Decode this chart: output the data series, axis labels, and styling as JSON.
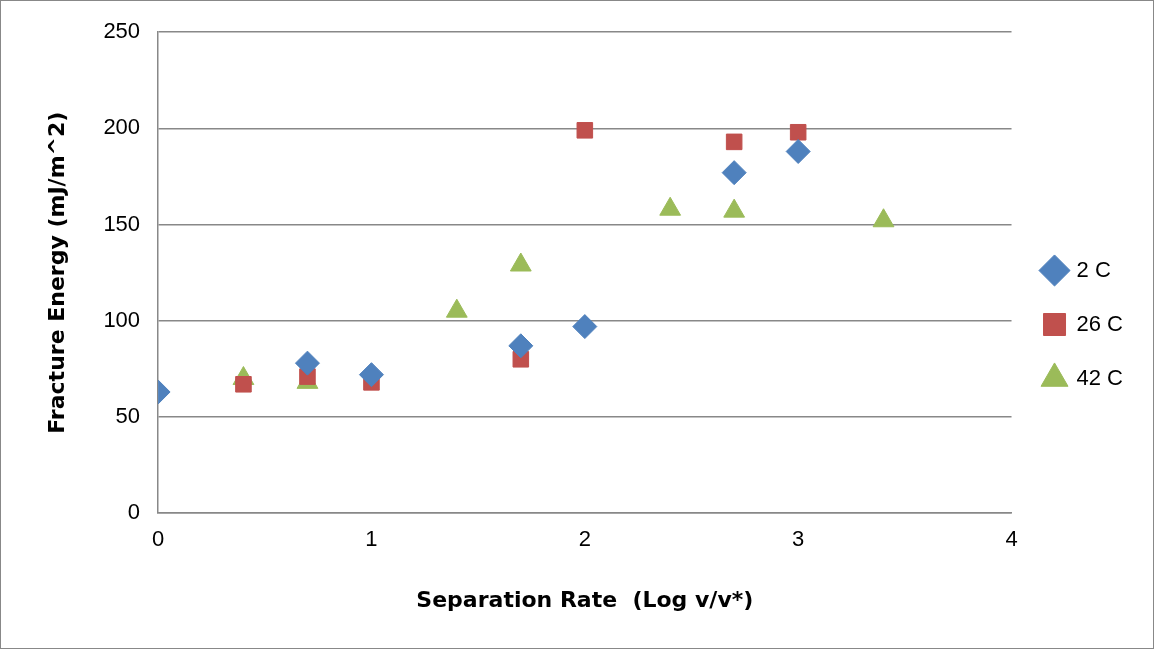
{
  "chart_data": {
    "type": "scatter",
    "xlabel": "Separation Rate  (Log v/v*)",
    "ylabel": "Fracture Energy (mJ/m^2)",
    "xlim": [
      0,
      4
    ],
    "xticks": [
      0,
      1,
      2,
      3,
      4
    ],
    "ylim": [
      0,
      250
    ],
    "yticks": [
      0,
      50,
      100,
      150,
      200,
      250
    ],
    "grid": "y",
    "legend": "right",
    "series": [
      {
        "name": "2 C",
        "color": "#4f81bd",
        "marker": "diamond",
        "x": [
          0,
          0.7,
          1,
          1.7,
          2,
          2.7,
          3
        ],
        "values": [
          63,
          78,
          72,
          87,
          97,
          177,
          188
        ]
      },
      {
        "name": "26 C",
        "color": "#c0504d",
        "marker": "square",
        "x": [
          0.4,
          0.7,
          1,
          1.7,
          2,
          2.7,
          3
        ],
        "values": [
          67,
          71,
          68,
          80,
          199,
          193,
          198
        ]
      },
      {
        "name": "42 C",
        "color": "#9bbb59",
        "marker": "triangle",
        "x": [
          0.4,
          0.7,
          1.4,
          1.7,
          2.4,
          2.7,
          3.4
        ],
        "values": [
          70,
          68,
          105,
          129,
          158,
          157,
          152
        ]
      }
    ]
  }
}
